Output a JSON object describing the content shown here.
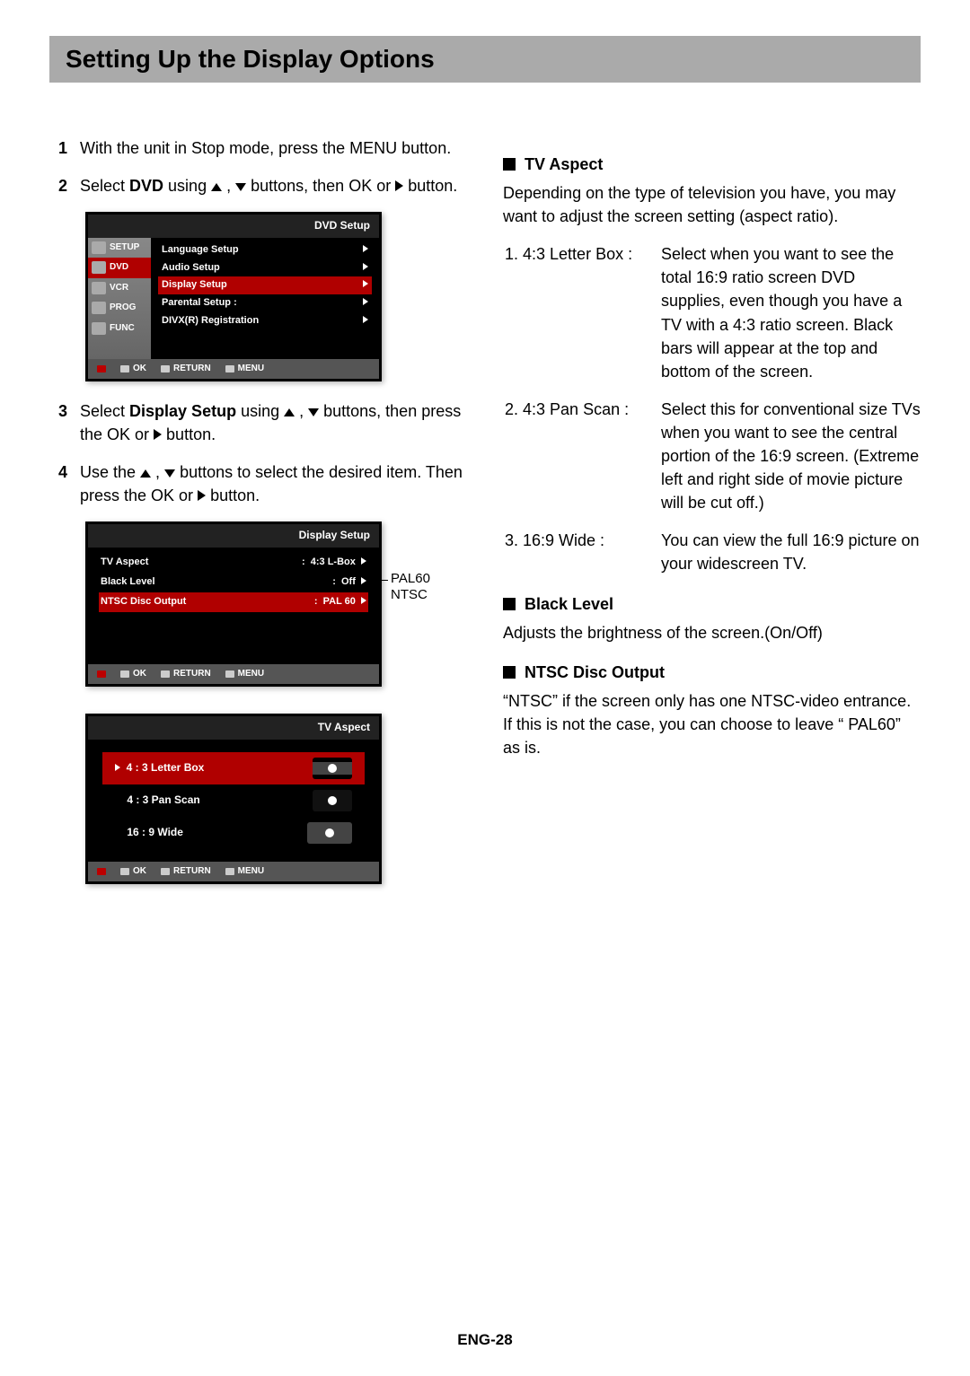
{
  "page": {
    "title": "Setting Up the Display Options",
    "number": "ENG-28"
  },
  "steps": {
    "1": "With the unit in Stop mode, press the MENU button.",
    "2a": "Select ",
    "2b": "DVD",
    "2c": " using ",
    "2d": " buttons, then OK or ",
    "2e": " button.",
    "3a": "Select ",
    "3b": "Display Setup",
    "3c": " using ",
    "3d": " buttons, then press the OK or ",
    "3e": " button.",
    "4a": "Use the ",
    "4b": " buttons to select the desired item. Then press the OK or ",
    "4c": " button."
  },
  "menu1": {
    "header": "DVD Setup",
    "tabs": [
      "SETUP",
      "DVD",
      "VCR",
      "PROG",
      "FUNC"
    ],
    "items": [
      "Language Setup",
      "Audio Setup",
      "Display Setup",
      "Parental Setup    :",
      "DIVX(R) Registration"
    ],
    "sel_index": 2,
    "sel_tab": 1
  },
  "menu2": {
    "header": "Display Setup",
    "rows": [
      {
        "label": "TV Aspect",
        "val": "4:3 L-Box"
      },
      {
        "label": "Black Level",
        "val": "Off"
      },
      {
        "label": "NTSC Disc Output",
        "val": "PAL 60"
      }
    ],
    "sel_index": 2,
    "callout1": "PAL60",
    "callout2": "NTSC"
  },
  "menu3": {
    "header": "TV Aspect",
    "items": [
      "4 : 3  Letter Box",
      "4 : 3 Pan Scan",
      "16 : 9 Wide"
    ],
    "sel_index": 0
  },
  "foot": {
    "ok": "OK",
    "return": "RETURN",
    "menu": "MENU"
  },
  "right": {
    "tvAspect": {
      "title": "TV Aspect",
      "intro": "Depending on the type of television you have, you may want to adjust the screen setting (aspect ratio).",
      "items": [
        {
          "label": "1. 4:3 Letter Box :",
          "body": "Select when you want to see the total 16:9 ratio screen DVD supplies, even though you have a TV with a 4:3 ratio screen. Black bars will appear at the top and bottom of the screen."
        },
        {
          "label": "2. 4:3 Pan Scan :",
          "body": "Select this for conventional size TVs when you want to see the central portion of the 16:9 screen. (Extreme left and right side of movie picture will be cut off.)"
        },
        {
          "label": "3. 16:9 Wide :",
          "body": "You can view the full 16:9 picture on your widescreen TV."
        }
      ]
    },
    "blackLevel": {
      "title": "Black Level",
      "body": "Adjusts the brightness of the screen.(On/Off)"
    },
    "ntsc": {
      "title": "NTSC Disc Output",
      "body": "“NTSC” if the screen only has one NTSC-video entrance. If this is not the case, you can choose to leave “ PAL60” as is."
    }
  },
  "colors": {
    "title_bg": "#aaaaaa",
    "osd_bg": "#000000",
    "sel_bg": "#b00000",
    "foot_bg": "#555555"
  }
}
